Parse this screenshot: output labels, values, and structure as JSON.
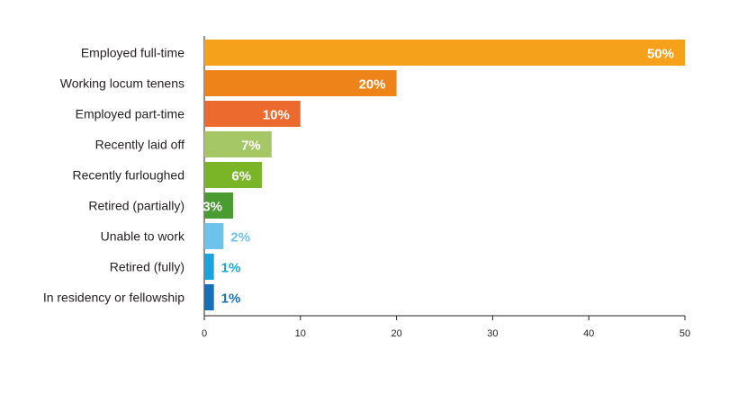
{
  "chart_data": {
    "type": "bar",
    "orientation": "horizontal",
    "categories": [
      "Employed full-time",
      "Working locum tenens",
      "Employed part-time",
      "Recently laid off",
      "Recently furloughed",
      "Retired (partially)",
      "Unable to work",
      "Retired (fully)",
      "In residency or fellowship"
    ],
    "values": [
      50,
      20,
      10,
      7,
      6,
      3,
      2,
      1,
      1
    ],
    "value_labels": [
      "50%",
      "20%",
      "10%",
      "7%",
      "6%",
      "3%",
      "2%",
      "1%",
      "1%"
    ],
    "colors": [
      "#f6a11c",
      "#ee8419",
      "#ec6a2d",
      "#a5c766",
      "#7ab527",
      "#4a9b32",
      "#6ec3ea",
      "#1aa3dd",
      "#1670b8"
    ],
    "label_colors_outside": [
      "#ffffff",
      "#ffffff",
      "#ffffff",
      "#ffffff",
      "#ffffff",
      "#ffffff",
      "#6ec3ea",
      "#1aa3dd",
      "#1670b8"
    ],
    "label_inside": [
      true,
      true,
      true,
      true,
      true,
      true,
      false,
      false,
      false
    ],
    "xlim": [
      0,
      50
    ],
    "xticks": [
      0,
      10,
      20,
      30,
      40,
      50
    ],
    "title": "",
    "xlabel": "",
    "ylabel": "",
    "grid": false,
    "legend": "none"
  }
}
